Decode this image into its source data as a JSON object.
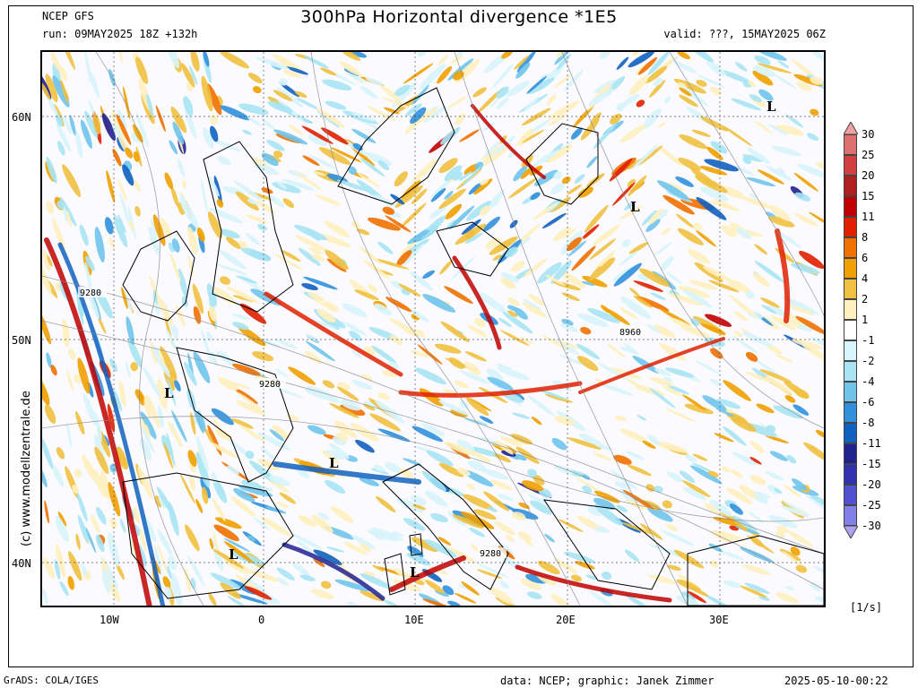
{
  "header": {
    "model": "NCEP GFS",
    "run": "run: 09MAY2025 18Z +132h",
    "title": "300hPa Horizontal divergence *1E5",
    "valid": "valid: ???, 15MAY2025 06Z"
  },
  "map": {
    "lon_labels": [
      "10W",
      "0",
      "10E",
      "20E",
      "30E"
    ],
    "lat_labels": [
      "60N",
      "50N",
      "40N"
    ],
    "contour_labels": [
      "9280",
      "9280",
      "8960",
      "9280"
    ],
    "pressure_markers": [
      "L",
      "L",
      "L",
      "L",
      "L",
      "L"
    ],
    "copyright": "(c) www.modellzentrale.de"
  },
  "colorbar": {
    "labels": [
      "30",
      "25",
      "20",
      "15",
      "11",
      "8",
      "6",
      "4",
      "2",
      "1",
      "-1",
      "-2",
      "-4",
      "-6",
      "-8",
      "-11",
      "-15",
      "-20",
      "-25",
      "-30"
    ],
    "colors": [
      "#f0a0a0",
      "#e07070",
      "#d04040",
      "#b02020",
      "#c00000",
      "#e02000",
      "#f07000",
      "#f0a000",
      "#f0c040",
      "#fff0c0",
      "#ffffff",
      "#d8f4fc",
      "#a8e4f4",
      "#70c4ec",
      "#3090dc",
      "#1060c0",
      "#202090",
      "#3030b0",
      "#5050d0",
      "#8080e8",
      "#b0a0f0"
    ],
    "unit": "[1/s]"
  },
  "footer": {
    "left": "GrADS: COLA/IGES",
    "credit": "data: NCEP; graphic: Janek Zimmer",
    "timestamp": "2025-05-10-00:22"
  }
}
